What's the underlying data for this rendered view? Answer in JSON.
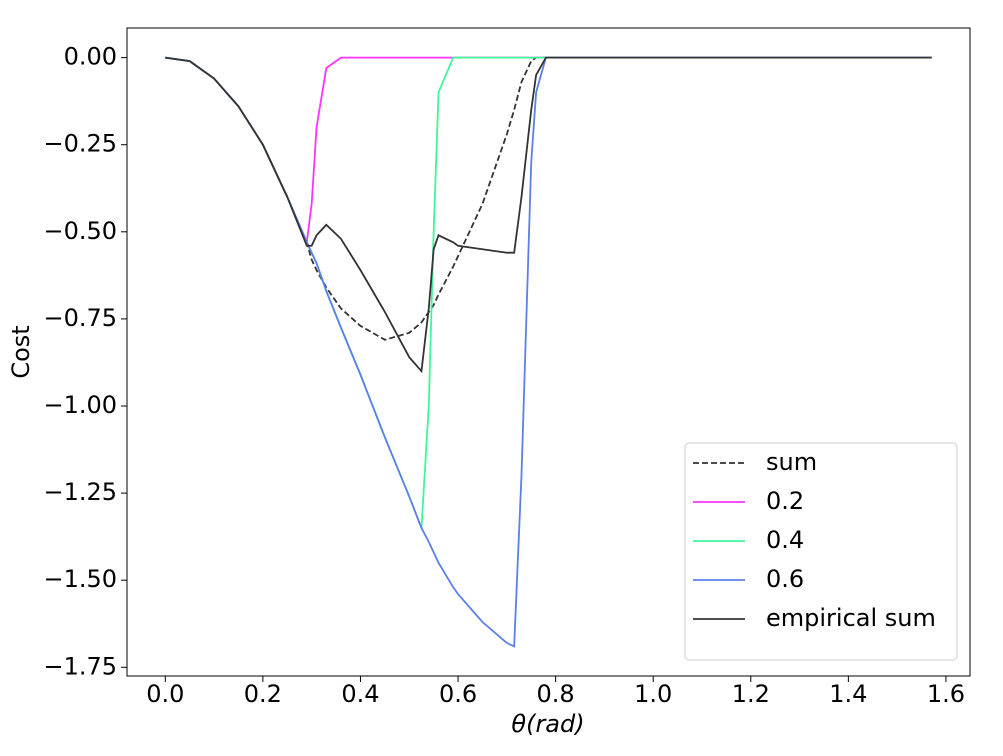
{
  "chart_data": {
    "type": "line",
    "xlabel": "θ(rad)",
    "ylabel": "Cost",
    "x": [
      0,
      0.05,
      0.1,
      0.15,
      0.2,
      0.25,
      0.29,
      0.3,
      0.31,
      0.33,
      0.36,
      0.4,
      0.45,
      0.5,
      0.525,
      0.54,
      0.55,
      0.56,
      0.59,
      0.6,
      0.65,
      0.7,
      0.715,
      0.73,
      0.75,
      0.76,
      0.78,
      0.8,
      1.0,
      1.2,
      1.4,
      1.5708
    ],
    "series": [
      {
        "name": "sum",
        "color": "#333333",
        "dash": true,
        "values": [
          0,
          -0.01,
          -0.06,
          -0.14,
          -0.25,
          -0.4,
          -0.53,
          -0.58,
          -0.61,
          -0.66,
          -0.72,
          -0.77,
          -0.81,
          -0.79,
          -0.76,
          -0.73,
          -0.71,
          -0.68,
          -0.6,
          -0.57,
          -0.42,
          -0.22,
          -0.15,
          -0.07,
          -0.01,
          0,
          0,
          0,
          0,
          0,
          0,
          0
        ]
      },
      {
        "name": "0.2",
        "color": "#ff33ff",
        "dash": false,
        "values": [
          0,
          -0.01,
          -0.06,
          -0.14,
          -0.25,
          -0.4,
          -0.53,
          -0.42,
          -0.2,
          -0.03,
          0,
          0,
          0,
          0,
          0,
          0,
          0,
          0,
          0,
          0,
          0,
          0,
          0,
          0,
          0,
          0,
          0,
          0,
          0,
          0,
          0,
          0
        ]
      },
      {
        "name": "0.4",
        "color": "#40f59a",
        "dash": false,
        "values": [
          0,
          -0.01,
          -0.06,
          -0.14,
          -0.25,
          -0.4,
          -0.53,
          -0.56,
          -0.59,
          -0.67,
          -0.775,
          -0.91,
          -1.09,
          -1.26,
          -1.35,
          -1.0,
          -0.5,
          -0.1,
          0,
          0,
          0,
          0,
          0,
          0,
          0,
          0,
          0,
          0,
          0,
          0,
          0,
          0
        ]
      },
      {
        "name": "0.6",
        "color": "#5b80e6",
        "dash": false,
        "values": [
          0,
          -0.01,
          -0.06,
          -0.14,
          -0.25,
          -0.4,
          -0.53,
          -0.56,
          -0.59,
          -0.67,
          -0.775,
          -0.91,
          -1.09,
          -1.26,
          -1.35,
          -1.39,
          -1.42,
          -1.45,
          -1.52,
          -1.54,
          -1.62,
          -1.68,
          -1.69,
          -1.2,
          -0.3,
          -0.1,
          0,
          0,
          0,
          0,
          0,
          0
        ]
      },
      {
        "name": "empirical sum",
        "color": "#333333",
        "dash": false,
        "values": [
          0,
          -0.01,
          -0.06,
          -0.14,
          -0.25,
          -0.4,
          -0.54,
          -0.54,
          -0.51,
          -0.48,
          -0.52,
          -0.61,
          -0.73,
          -0.86,
          -0.9,
          -0.72,
          -0.55,
          -0.51,
          -0.53,
          -0.54,
          -0.55,
          -0.56,
          -0.56,
          -0.4,
          -0.15,
          -0.05,
          0,
          0,
          0,
          0,
          0,
          0
        ]
      }
    ],
    "xlim": [
      -0.0785,
      1.6493
    ],
    "ylim": [
      -1.775,
      0.085
    ],
    "xticks": [
      {
        "value": 0,
        "label": "0.0"
      },
      {
        "value": 0.2,
        "label": "0.2"
      },
      {
        "value": 0.4,
        "label": "0.4"
      },
      {
        "value": 0.6,
        "label": "0.6"
      },
      {
        "value": 0.8,
        "label": "0.8"
      },
      {
        "value": 1,
        "label": "1.0"
      },
      {
        "value": 1.2,
        "label": "1.2"
      },
      {
        "value": 1.4,
        "label": "1.4"
      },
      {
        "value": 1.6,
        "label": "1.6"
      }
    ],
    "yticks": [
      {
        "value": 0,
        "label": "0.00"
      },
      {
        "value": -0.25,
        "label": "−0.25"
      },
      {
        "value": -0.5,
        "label": "−0.50"
      },
      {
        "value": -0.75,
        "label": "−0.75"
      },
      {
        "value": -1,
        "label": "−1.00"
      },
      {
        "value": -1.25,
        "label": "−1.25"
      },
      {
        "value": -1.5,
        "label": "−1.50"
      },
      {
        "value": -1.75,
        "label": "−1.75"
      }
    ],
    "legend": "lower right"
  }
}
